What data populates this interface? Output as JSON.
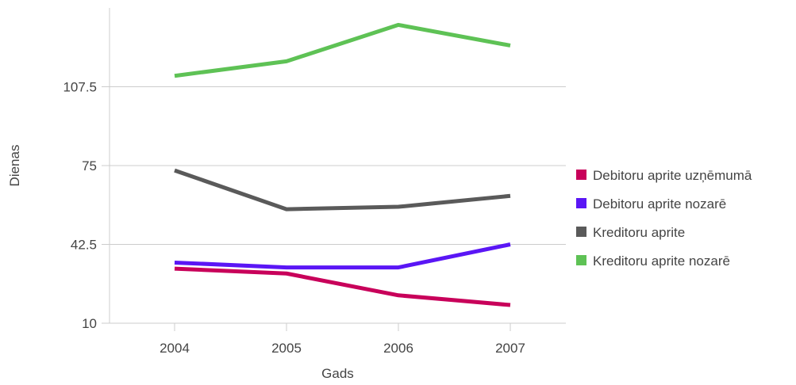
{
  "chart_data": {
    "type": "line",
    "xlabel": "Gads",
    "ylabel": "Dienas",
    "categories": [
      "2004",
      "2005",
      "2006",
      "2007"
    ],
    "ylim": [
      10,
      140
    ],
    "yticks": [
      10,
      42.5,
      75,
      107.5
    ],
    "ytick_labels": [
      "10",
      "42.5",
      "75",
      "107.5"
    ],
    "grid": "horizontal",
    "legend_position": "right",
    "series": [
      {
        "name": "Debitoru aprite uzņēmumā",
        "color": "#c8005a",
        "values": [
          32.5,
          30.5,
          21.5,
          17.5
        ]
      },
      {
        "name": "Debitoru aprite nozarē",
        "color": "#5a16f5",
        "values": [
          35,
          33,
          33,
          42.5
        ]
      },
      {
        "name": "Kreditoru aprite",
        "color": "#5a5a5a",
        "values": [
          73,
          57,
          58,
          62.5
        ]
      },
      {
        "name": "Kreditoru aprite nozarē",
        "color": "#5ec255",
        "values": [
          112,
          118,
          133,
          124.5
        ]
      }
    ]
  }
}
